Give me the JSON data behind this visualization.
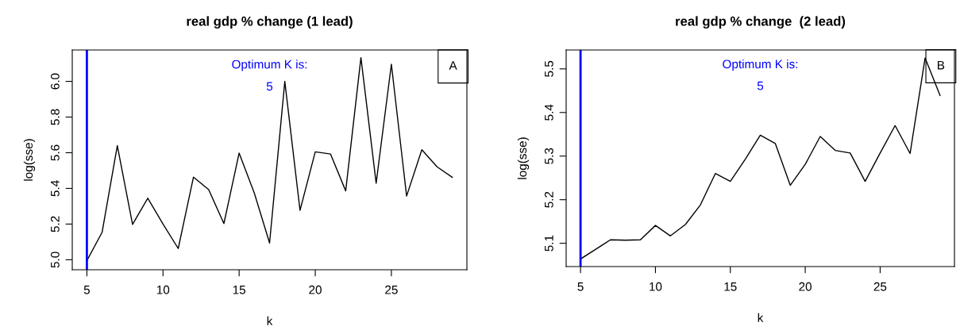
{
  "chart_data": [
    {
      "type": "line",
      "title": "real gdp % change (1 lead)",
      "xlabel": "k",
      "ylabel": "log(sse)",
      "x": [
        5,
        6,
        7,
        8,
        9,
        10,
        11,
        12,
        13,
        14,
        15,
        16,
        17,
        18,
        19,
        20,
        21,
        22,
        23,
        24,
        25,
        26,
        27,
        28,
        29
      ],
      "series": [
        {
          "color": "#000000",
          "values": [
            4.995,
            5.154,
            5.64,
            5.198,
            5.345,
            5.2,
            5.063,
            5.463,
            5.393,
            5.203,
            5.598,
            5.373,
            5.094,
            6.0,
            5.277,
            5.605,
            5.593,
            5.386,
            6.133,
            5.429,
            6.096,
            5.357,
            5.617,
            5.521,
            5.462
          ]
        }
      ],
      "xlim": [
        4.04,
        29.96
      ],
      "ylim": [
        4.944,
        6.176
      ],
      "xticks": [
        5,
        10,
        15,
        20,
        25
      ],
      "yticks": [
        {
          "value": 5,
          "label": "5.0"
        },
        5.2,
        5.4,
        5.6,
        5.8,
        {
          "value": 6,
          "label": "6.0"
        }
      ],
      "ref_lines": [
        {
          "axis": "x",
          "value": 5,
          "color": "#0000ff"
        }
      ],
      "annotations": [
        "Optimum K is:",
        "5",
        "A"
      ],
      "grid": false,
      "legend": false
    },
    {
      "type": "line",
      "title": "real gdp % change  (2 lead)",
      "xlabel": "k",
      "ylabel": "log(sse)",
      "x": [
        5,
        6,
        7,
        8,
        9,
        10,
        11,
        12,
        13,
        14,
        15,
        16,
        17,
        18,
        19,
        20,
        21,
        22,
        23,
        24,
        25,
        26,
        27,
        28,
        29
      ],
      "series": [
        {
          "color": "#000000",
          "values": [
            5.064,
            5.086,
            5.108,
            5.107,
            5.108,
            5.141,
            5.117,
            5.143,
            5.188,
            5.26,
            5.242,
            5.293,
            5.348,
            5.329,
            5.233,
            5.281,
            5.345,
            5.313,
            5.307,
            5.242,
            5.307,
            5.37,
            5.306,
            5.525,
            5.439
          ]
        }
      ],
      "xlim": [
        4.04,
        29.96
      ],
      "ylim": [
        5.0466,
        5.5434
      ],
      "xticks": [
        5,
        10,
        15,
        20,
        25
      ],
      "yticks": [
        5.1,
        5.2,
        5.3,
        5.4,
        5.5
      ],
      "ref_lines": [
        {
          "axis": "x",
          "value": 5,
          "color": "#0000ff"
        }
      ],
      "annotations": [
        "Optimum K is:",
        "5",
        "B"
      ],
      "grid": false,
      "legend": false
    }
  ]
}
